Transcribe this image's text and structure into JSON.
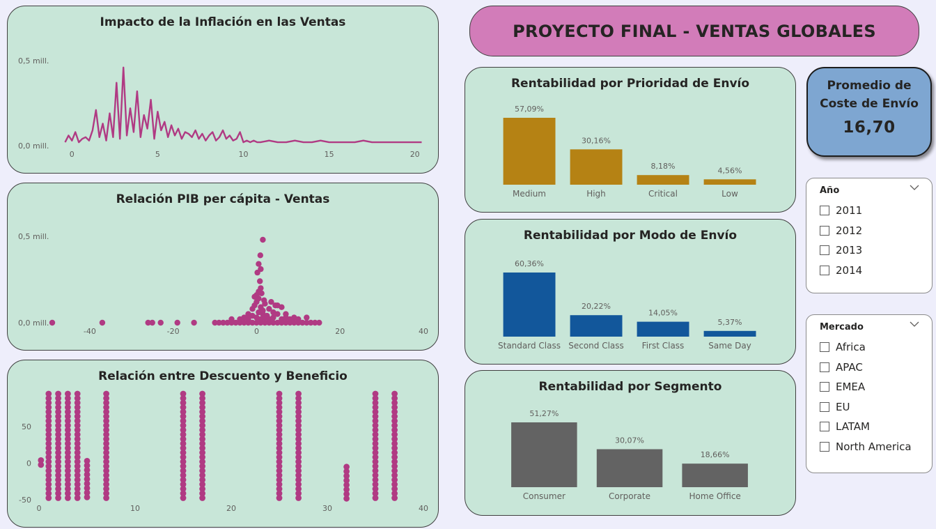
{
  "dashboard": {
    "title": "PROYECTO FINAL - VENTAS GLOBALES",
    "kpi": {
      "label": "Promedio de Coste de Envío",
      "value": "16,70"
    },
    "colors": {
      "magenta": "#b03a83",
      "gold": "#b58214",
      "blue": "#12579b",
      "gray": "#636363",
      "card": "#c8e6d8",
      "banner": "#d27cb9",
      "kpi": "#7ea6d1"
    }
  },
  "slicers": {
    "year": {
      "title": "Año",
      "chevron_icon": "chevron-down-icon",
      "options": [
        "2011",
        "2012",
        "2013",
        "2014"
      ]
    },
    "market": {
      "title": "Mercado",
      "chevron_icon": "chevron-down-icon",
      "options": [
        "Africa",
        "APAC",
        "EMEA",
        "EU",
        "LATAM",
        "North America"
      ]
    }
  },
  "chart_data": [
    {
      "id": "inflation",
      "type": "line",
      "title": "Impacto de la Inflación en las Ventas",
      "xlabel": "",
      "ylabel": "",
      "xlim": [
        -0.5,
        20.5
      ],
      "ylim": [
        0,
        0.5
      ],
      "xticks": [
        {
          "v": 0,
          "label": "0"
        },
        {
          "v": 5,
          "label": "5"
        },
        {
          "v": 10,
          "label": "10"
        },
        {
          "v": 15,
          "label": "15"
        },
        {
          "v": 20,
          "label": "20"
        }
      ],
      "yticks": [
        {
          "v": 0,
          "label": "0,0 mill."
        },
        {
          "v": 0.5,
          "label": "0,5 mill."
        }
      ],
      "grid": false,
      "x": [
        -0.4,
        -0.2,
        0,
        0.2,
        0.4,
        0.6,
        0.8,
        1,
        1.2,
        1.4,
        1.6,
        1.8,
        2,
        2.2,
        2.4,
        2.6,
        2.8,
        3,
        3.2,
        3.4,
        3.6,
        3.8,
        4,
        4.2,
        4.4,
        4.6,
        4.8,
        5,
        5.2,
        5.4,
        5.6,
        5.8,
        6,
        6.2,
        6.4,
        6.6,
        6.8,
        7,
        7.2,
        7.4,
        7.6,
        7.8,
        8,
        8.2,
        8.4,
        8.6,
        8.8,
        9,
        9.2,
        9.4,
        9.6,
        9.8,
        10,
        10.2,
        10.4,
        10.6,
        10.8,
        11,
        11.5,
        12,
        12.5,
        13,
        13.5,
        14,
        14.5,
        15,
        15.5,
        16,
        16.5,
        17,
        17.5,
        18,
        18.5,
        19,
        19.5,
        20,
        20.4
      ],
      "y": [
        0.02,
        0.06,
        0.03,
        0.08,
        0.02,
        0.04,
        0.05,
        0.03,
        0.09,
        0.21,
        0.05,
        0.13,
        0.03,
        0.19,
        0.05,
        0.37,
        0.04,
        0.46,
        0.06,
        0.22,
        0.08,
        0.32,
        0.05,
        0.18,
        0.1,
        0.27,
        0.04,
        0.2,
        0.09,
        0.14,
        0.05,
        0.12,
        0.06,
        0.1,
        0.04,
        0.08,
        0.07,
        0.05,
        0.09,
        0.04,
        0.07,
        0.03,
        0.06,
        0.08,
        0.03,
        0.05,
        0.09,
        0.04,
        0.06,
        0.03,
        0.04,
        0.08,
        0.02,
        0.03,
        0.02,
        0.03,
        0.02,
        0.02,
        0.03,
        0.02,
        0.02,
        0.03,
        0.02,
        0.02,
        0.03,
        0.02,
        0.02,
        0.02,
        0.02,
        0.03,
        0.02,
        0.02,
        0.02,
        0.02,
        0.02,
        0.02,
        0.02
      ],
      "series_color": "#b03a83"
    },
    {
      "id": "gdp",
      "type": "scatter",
      "title": "Relación PIB per cápita - Ventas",
      "xlabel": "",
      "ylabel": "",
      "xlim": [
        -50,
        40
      ],
      "ylim": [
        0,
        0.5
      ],
      "xticks": [
        {
          "v": -40,
          "label": "-40"
        },
        {
          "v": -20,
          "label": "-20"
        },
        {
          "v": 0,
          "label": "0"
        },
        {
          "v": 20,
          "label": "20"
        },
        {
          "v": 40,
          "label": "40"
        }
      ],
      "yticks": [
        {
          "v": 0,
          "label": "0,0 mill."
        },
        {
          "v": 0.5,
          "label": "0,5 mill."
        }
      ],
      "grid": false,
      "points": [
        [
          -49,
          0
        ],
        [
          -37,
          0
        ],
        [
          -26,
          0
        ],
        [
          -25,
          0
        ],
        [
          -23,
          0
        ],
        [
          -19,
          0
        ],
        [
          -15,
          0
        ],
        [
          -10,
          0
        ],
        [
          -9,
          0
        ],
        [
          -8,
          0
        ],
        [
          -7,
          0
        ],
        [
          -6,
          0
        ],
        [
          -5,
          0
        ],
        [
          -4,
          0
        ],
        [
          -3,
          0
        ],
        [
          -2,
          0
        ],
        [
          -1,
          0
        ],
        [
          0,
          0
        ],
        [
          1,
          0
        ],
        [
          2,
          0
        ],
        [
          3,
          0
        ],
        [
          4,
          0
        ],
        [
          5,
          0
        ],
        [
          6,
          0
        ],
        [
          7,
          0
        ],
        [
          8,
          0
        ],
        [
          9,
          0
        ],
        [
          10,
          0
        ],
        [
          11,
          0
        ],
        [
          12,
          0
        ],
        [
          13,
          0
        ],
        [
          14,
          0
        ],
        [
          15,
          0
        ],
        [
          -4,
          0.02
        ],
        [
          -3,
          0.03
        ],
        [
          -2,
          0.02
        ],
        [
          -1,
          0.04
        ],
        [
          0,
          0.03
        ],
        [
          0.5,
          0.06
        ],
        [
          1,
          0.02
        ],
        [
          1.5,
          0.05
        ],
        [
          2,
          0.03
        ],
        [
          2.5,
          0.04
        ],
        [
          3,
          0.02
        ],
        [
          4,
          0.03
        ],
        [
          5,
          0.05
        ],
        [
          6,
          0.02
        ],
        [
          7,
          0.03
        ],
        [
          8,
          0.02
        ],
        [
          9,
          0.03
        ],
        [
          -1,
          0.08
        ],
        [
          -0.5,
          0.1
        ],
        [
          0,
          0.12
        ],
        [
          0.5,
          0.14
        ],
        [
          1,
          0.09
        ],
        [
          1.5,
          0.07
        ],
        [
          2,
          0.11
        ],
        [
          3,
          0.08
        ],
        [
          4,
          0.06
        ],
        [
          5,
          0.1
        ],
        [
          6,
          0.09
        ],
        [
          7,
          0.05
        ],
        [
          0,
          0.16
        ],
        [
          0.5,
          0.18
        ],
        [
          1,
          0.2
        ],
        [
          -0.5,
          0.15
        ],
        [
          0.8,
          0.24
        ],
        [
          1.2,
          0.17
        ],
        [
          1.8,
          0.13
        ],
        [
          3.5,
          0.12
        ],
        [
          4.5,
          0.1
        ],
        [
          0.2,
          0.29
        ],
        [
          1,
          0.31
        ],
        [
          0.5,
          0.34
        ],
        [
          0.9,
          0.39
        ],
        [
          1.5,
          0.48
        ],
        [
          -2,
          0.05
        ],
        [
          -6,
          0.02
        ],
        [
          10,
          0.02
        ],
        [
          12,
          0.03
        ]
      ],
      "series_color": "#b03a83"
    },
    {
      "id": "discount",
      "type": "scatter",
      "title": "Relación entre Descuento y Beneficio",
      "xlabel": "",
      "ylabel": "",
      "xlim": [
        0,
        40
      ],
      "ylim": [
        -50,
        95
      ],
      "xticks": [
        {
          "v": 0,
          "label": "0"
        },
        {
          "v": 10,
          "label": "10"
        },
        {
          "v": 20,
          "label": "20"
        },
        {
          "v": 30,
          "label": "30"
        },
        {
          "v": 40,
          "label": "40"
        }
      ],
      "yticks": [
        {
          "v": -50,
          "label": "-50"
        },
        {
          "v": 0,
          "label": "0"
        },
        {
          "v": 50,
          "label": "50"
        }
      ],
      "grid": false,
      "columns": [
        {
          "x": 0.2,
          "ymin": -4,
          "ymax": 4
        },
        {
          "x": 1,
          "ymin": -50,
          "ymax": 95
        },
        {
          "x": 2,
          "ymin": -50,
          "ymax": 95
        },
        {
          "x": 3,
          "ymin": -50,
          "ymax": 95
        },
        {
          "x": 4,
          "ymin": -50,
          "ymax": 95
        },
        {
          "x": 5,
          "ymin": -50,
          "ymax": 3
        },
        {
          "x": 7,
          "ymin": -50,
          "ymax": 95
        },
        {
          "x": 15,
          "ymin": -50,
          "ymax": 95
        },
        {
          "x": 17,
          "ymin": -50,
          "ymax": 95
        },
        {
          "x": 25,
          "ymin": -50,
          "ymax": 95
        },
        {
          "x": 27,
          "ymin": -50,
          "ymax": 95
        },
        {
          "x": 32,
          "ymin": -50,
          "ymax": -5
        },
        {
          "x": 35,
          "ymin": -50,
          "ymax": 95
        },
        {
          "x": 37,
          "ymin": -50,
          "ymax": 95
        }
      ],
      "series_color": "#b03a83"
    },
    {
      "id": "priority",
      "type": "bar",
      "title": "Rentabilidad por Prioridad de Envío",
      "xlabel": "",
      "ylabel": "",
      "categories": [
        "Medium",
        "High",
        "Critical",
        "Low"
      ],
      "values": [
        57.09,
        30.16,
        8.18,
        4.56
      ],
      "data_labels": [
        "57,09%",
        "30,16%",
        "8,18%",
        "4,56%"
      ],
      "ylim": [
        0,
        57.09
      ],
      "series_color": "#b58214"
    },
    {
      "id": "mode",
      "type": "bar",
      "title": "Rentabilidad por Modo de Envío",
      "xlabel": "",
      "ylabel": "",
      "categories": [
        "Standard Class",
        "Second Class",
        "First Class",
        "Same Day"
      ],
      "values": [
        60.36,
        20.22,
        14.05,
        5.37
      ],
      "data_labels": [
        "60,36%",
        "20,22%",
        "14,05%",
        "5,37%"
      ],
      "ylim": [
        0,
        60.36
      ],
      "series_color": "#12579b"
    },
    {
      "id": "segment",
      "type": "bar",
      "title": "Rentabilidad por Segmento",
      "xlabel": "",
      "ylabel": "",
      "categories": [
        "Consumer",
        "Corporate",
        "Home Office"
      ],
      "values": [
        51.27,
        30.07,
        18.66
      ],
      "data_labels": [
        "51,27%",
        "30,07%",
        "18,66%"
      ],
      "ylim": [
        0,
        51.27
      ],
      "series_color": "#636363"
    }
  ]
}
